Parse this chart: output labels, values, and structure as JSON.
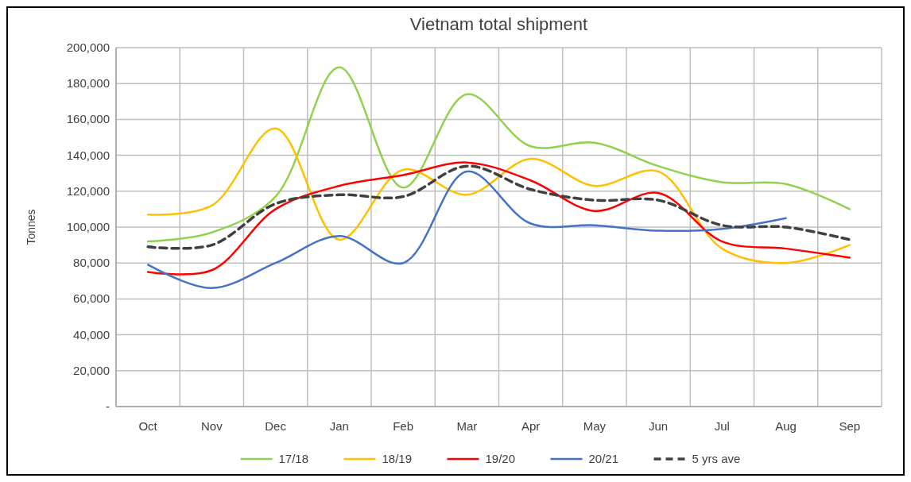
{
  "chart_data": {
    "type": "line",
    "title": "Vietnam total shipment",
    "ylabel": "Tonnes",
    "categories": [
      "Oct",
      "Nov",
      "Dec",
      "Jan",
      "Feb",
      "Mar",
      "Apr",
      "May",
      "Jun",
      "Jul",
      "Aug",
      "Sep"
    ],
    "series": [
      {
        "name": "17/18",
        "color": "#92d050",
        "values": [
          92000,
          97000,
          117000,
          189000,
          122000,
          174000,
          145000,
          147000,
          134000,
          125000,
          124000,
          110000
        ]
      },
      {
        "name": "18/19",
        "color": "#ffc000",
        "values": [
          107000,
          112000,
          155000,
          93000,
          132000,
          118000,
          138000,
          123000,
          131000,
          88000,
          80000,
          90000
        ]
      },
      {
        "name": "19/20",
        "color": "#ff0000",
        "values": [
          75000,
          76000,
          110000,
          123000,
          129000,
          136000,
          126000,
          109000,
          119000,
          92000,
          88000,
          83000
        ]
      },
      {
        "name": "20/21",
        "color": "#4472c4",
        "values": [
          79000,
          66000,
          80000,
          95000,
          80000,
          131000,
          102000,
          101000,
          98000,
          99000,
          105000,
          null
        ]
      },
      {
        "name": "5 yrs ave",
        "color": "#404040",
        "line_style": "dashed",
        "values": [
          89000,
          90000,
          113000,
          118000,
          117000,
          134000,
          121000,
          115000,
          115000,
          101000,
          100000,
          93000
        ]
      }
    ],
    "ylim": [
      0,
      200000
    ],
    "yticks": [
      {
        "value": 0,
        "label": "-"
      },
      {
        "value": 20000,
        "label": "20,000"
      },
      {
        "value": 40000,
        "label": "40,000"
      },
      {
        "value": 60000,
        "label": "60,000"
      },
      {
        "value": 80000,
        "label": "80,000"
      },
      {
        "value": 100000,
        "label": "100,000"
      },
      {
        "value": 120000,
        "label": "120,000"
      },
      {
        "value": 140000,
        "label": "140,000"
      },
      {
        "value": 160000,
        "label": "160,000"
      },
      {
        "value": 180000,
        "label": "180,000"
      },
      {
        "value": 200000,
        "label": "200,000"
      }
    ],
    "grid": true,
    "legend": "bottom",
    "marker": "none",
    "line_style": "solid"
  }
}
